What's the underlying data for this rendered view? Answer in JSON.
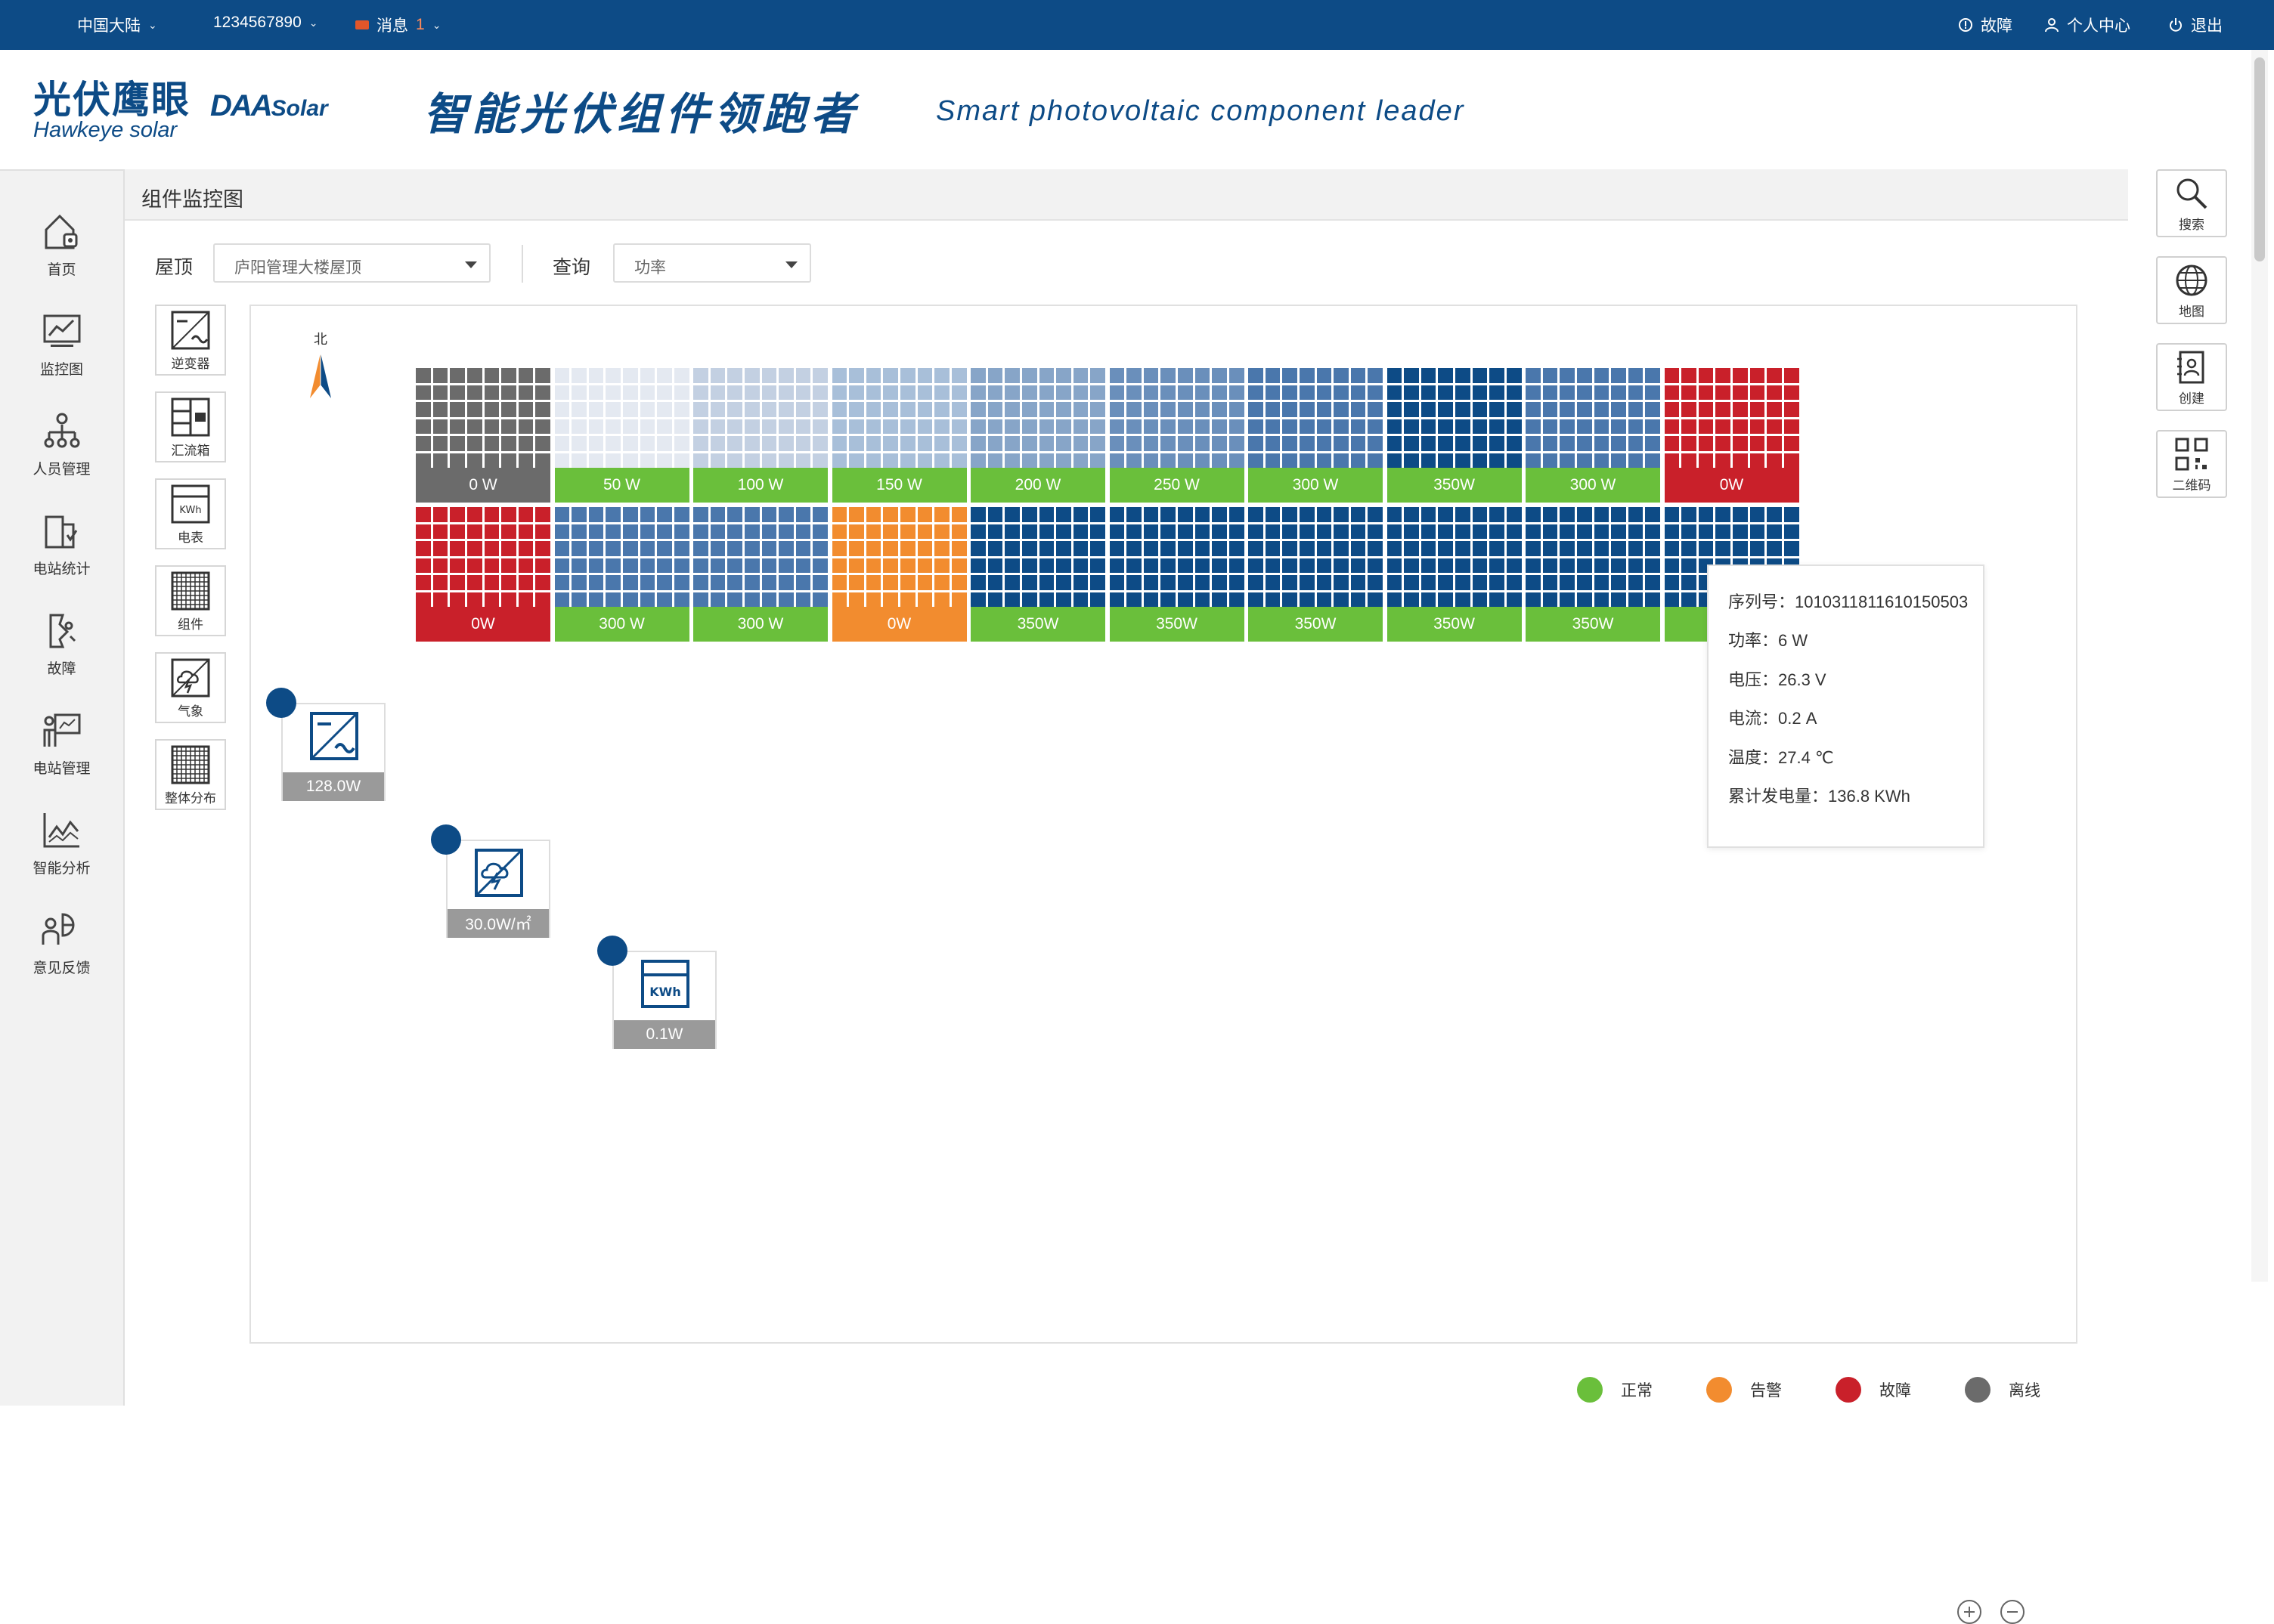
{
  "topbar": {
    "region": "中国大陆",
    "account": "1234567890",
    "messages_label": "消息",
    "messages_count": "1",
    "fault": "故障",
    "user_center": "个人中心",
    "logout": "退出"
  },
  "brand": {
    "logo_cn": "光伏鹰眼",
    "logo_en": "Hawkeye solar",
    "logo_daa": "DAA",
    "logo_daa_suffix": "Solar",
    "slogan_cn": "智能光伏组件领跑者",
    "slogan_en": "Smart photovoltaic component leader"
  },
  "sidebar": {
    "items": [
      {
        "label": "首页",
        "icon": "home-icon"
      },
      {
        "label": "监控图",
        "icon": "monitor-chart-icon"
      },
      {
        "label": "人员管理",
        "icon": "people-icon"
      },
      {
        "label": "电站统计",
        "icon": "station-stats-icon"
      },
      {
        "label": "故障",
        "icon": "fault-icon"
      },
      {
        "label": "电站管理",
        "icon": "station-manage-icon"
      },
      {
        "label": "智能分析",
        "icon": "analysis-icon"
      },
      {
        "label": "意见反馈",
        "icon": "feedback-icon"
      }
    ]
  },
  "rightbar": {
    "items": [
      {
        "label": "搜索",
        "icon": "search-icon"
      },
      {
        "label": "地图",
        "icon": "globe-icon"
      },
      {
        "label": "创建",
        "icon": "contact-book-icon"
      },
      {
        "label": "二维码",
        "icon": "qr-code-icon"
      }
    ]
  },
  "page": {
    "breadcrumb": "组件监控图"
  },
  "filters": {
    "roof_label": "屋顶",
    "roof_value": "庐阳管理大楼屋顶",
    "query_label": "查询",
    "query_value": "功率"
  },
  "toolbox": {
    "items": [
      {
        "label": "逆变器",
        "icon": "inverter-icon"
      },
      {
        "label": "汇流箱",
        "icon": "combiner-box-icon"
      },
      {
        "label": "电表",
        "icon": "meter-icon"
      },
      {
        "label": "组件",
        "icon": "module-icon"
      },
      {
        "label": "气象",
        "icon": "weather-icon"
      },
      {
        "label": "整体分布",
        "icon": "distribution-icon"
      }
    ]
  },
  "compass": {
    "north": "北"
  },
  "panels": {
    "row1": [
      {
        "value": "0 W",
        "status": "offline",
        "shade": "#6b6b6b"
      },
      {
        "value": "50 W",
        "status": "normal",
        "shade": "#e4e9f1"
      },
      {
        "value": "100 W",
        "status": "normal",
        "shade": "#c3d0e2"
      },
      {
        "value": "150 W",
        "status": "normal",
        "shade": "#a8bfd9"
      },
      {
        "value": "200 W",
        "status": "normal",
        "shade": "#87a5c8"
      },
      {
        "value": "250 W",
        "status": "normal",
        "shade": "#6a8fbb"
      },
      {
        "value": "300 W",
        "status": "normal",
        "shade": "#4a77ac"
      },
      {
        "value": "350W",
        "status": "normal",
        "shade": "#0d4b86"
      },
      {
        "value": "300 W",
        "status": "normal",
        "shade": "#4a77ac"
      },
      {
        "value": "0W",
        "status": "fault",
        "shade": "#c9202a"
      }
    ],
    "row2": [
      {
        "value": "0W",
        "status": "fault",
        "shade": "#c9202a"
      },
      {
        "value": "300 W",
        "status": "normal",
        "shade": "#4a77ac"
      },
      {
        "value": "300 W",
        "status": "normal",
        "shade": "#4a77ac"
      },
      {
        "value": "0W",
        "status": "alarm",
        "shade": "#f28c2f"
      },
      {
        "value": "350W",
        "status": "normal",
        "shade": "#0d4b86"
      },
      {
        "value": "350W",
        "status": "normal",
        "shade": "#0d4b86"
      },
      {
        "value": "350W",
        "status": "normal",
        "shade": "#0d4b86"
      },
      {
        "value": "350W",
        "status": "normal",
        "shade": "#0d4b86"
      },
      {
        "value": "350W",
        "status": "normal",
        "shade": "#0d4b86"
      },
      {
        "value": "",
        "status": "normal",
        "shade": "#0d4b86"
      }
    ]
  },
  "devices": {
    "inverter": {
      "value": "128.0W"
    },
    "weather": {
      "value": "30.0W/㎡"
    },
    "meter": {
      "value": "0.1W",
      "unit_label": "KWh"
    }
  },
  "tooltip": {
    "serial": "序列号：1010311811610150503",
    "power": "功率：6 W",
    "voltage": "电压：26.3 V",
    "current": "电流：0.2 A",
    "temperature": "温度：27.4 ℃",
    "energy": "累计发电量：136.8 KWh"
  },
  "legend": {
    "normal": "正常",
    "alarm": "告警",
    "fault": "故障",
    "offline": "离线"
  },
  "colors": {
    "brand": "#0d4b86",
    "normal": "#6abf3b",
    "alarm": "#f28c2f",
    "fault": "#c9202a",
    "offline": "#6b6b6b"
  }
}
